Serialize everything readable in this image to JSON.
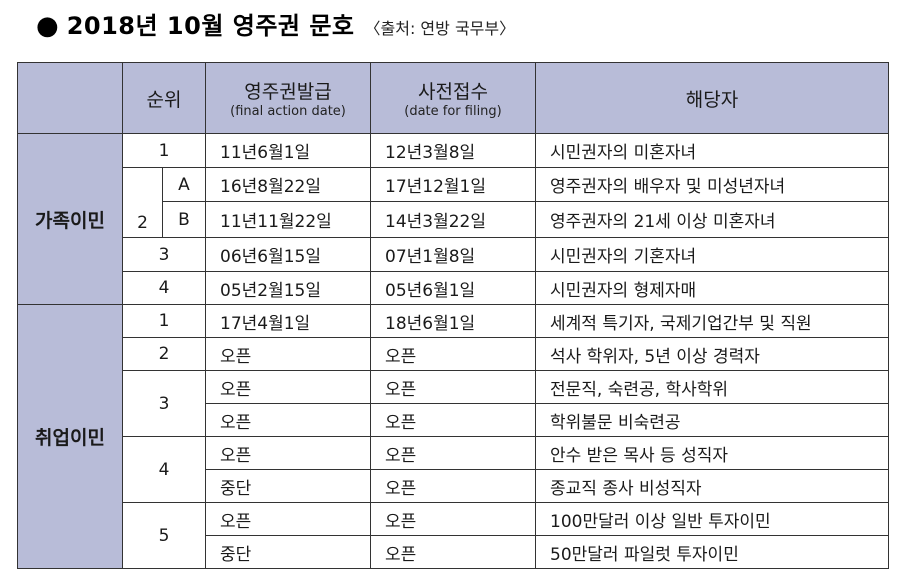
{
  "title": {
    "bullet": "●",
    "main": "2018년 10월 영주권 문호",
    "source": "〈출처: 연방 국무부〉"
  },
  "header": {
    "rank": "순위",
    "final_action": "영주권발급",
    "final_action_en": "(final action date)",
    "filing": "사전접수",
    "filing_en": "(date for filing)",
    "applicant": "해당자"
  },
  "family": {
    "label": "가족이민",
    "rows": [
      {
        "rank": "1",
        "final": "11년6월1일",
        "filing": "12년3월8일",
        "who": "시민권자의 미혼자녀"
      },
      {
        "rank": "A",
        "final": "16년8월22일",
        "filing": "17년12월1일",
        "who": "영주권자의 배우자 및 미성년자녀"
      },
      {
        "rank": "B",
        "final": "11년11월22일",
        "filing": "14년3월22일",
        "who": "영주권자의 21세 이상 미혼자녀"
      },
      {
        "rank": "3",
        "final": "06년6월15일",
        "filing": "07년1월8일",
        "who": "시민권자의 기혼자녀"
      },
      {
        "rank": "4",
        "final": "05년2월15일",
        "filing": "05년6월1일",
        "who": "시민권자의 형제자매"
      }
    ],
    "group2": "2"
  },
  "employment": {
    "label": "취업이민",
    "rows": [
      {
        "rank": "1",
        "final": "17년4월1일",
        "filing": "18년6월1일",
        "who": "세계적 특기자, 국제기업간부 및 직원"
      },
      {
        "rank": "2",
        "final": "오픈",
        "filing": "오픈",
        "who": "석사 학위자, 5년 이상 경력자"
      },
      {
        "rank": "3",
        "final": "오픈",
        "filing": "오픈",
        "who": "전문직, 숙련공, 학사학위"
      },
      {
        "rank": "",
        "final": "오픈",
        "filing": "오픈",
        "who": "학위불문 비숙련공"
      },
      {
        "rank": "4",
        "final": "오픈",
        "filing": "오픈",
        "who": "안수 받은 목사 등 성직자"
      },
      {
        "rank": "",
        "final": "중단",
        "filing": "오픈",
        "who": "종교직 종사 비성직자"
      },
      {
        "rank": "5",
        "final": "오픈",
        "filing": "오픈",
        "who": "100만달러 이상 일반 투자이민"
      },
      {
        "rank": "",
        "final": "중단",
        "filing": "오픈",
        "who": "50만달러 파일럿 투자이민"
      }
    ]
  }
}
